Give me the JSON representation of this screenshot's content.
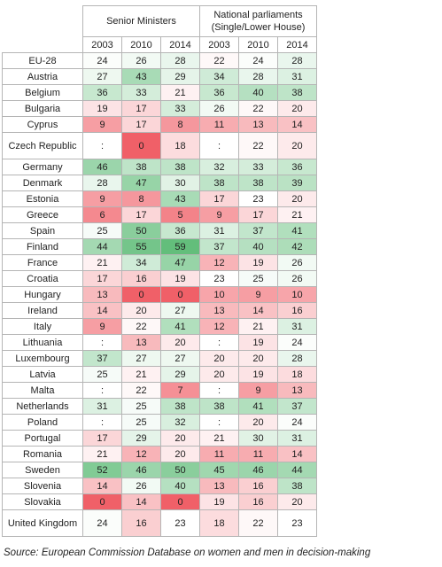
{
  "header": {
    "group1": "Senior Ministers",
    "group2_line1": "National parliaments",
    "group2_line2": "(Single/Lower House)",
    "years": [
      "2003",
      "2010",
      "2014",
      "2003",
      "2010",
      "2014"
    ]
  },
  "rows": [
    {
      "country": "EU-28",
      "values": [
        "24",
        "26",
        "28",
        "22",
        "24",
        "28"
      ]
    },
    {
      "country": "Austria",
      "values": [
        "27",
        "43",
        "29",
        "34",
        "28",
        "31"
      ]
    },
    {
      "country": "Belgium",
      "values": [
        "36",
        "33",
        "21",
        "36",
        "40",
        "38"
      ]
    },
    {
      "country": "Bulgaria",
      "values": [
        "19",
        "17",
        "33",
        "26",
        "22",
        "20"
      ]
    },
    {
      "country": "Cyprus",
      "values": [
        "9",
        "17",
        "8",
        "11",
        "13",
        "14"
      ]
    },
    {
      "country": "Czech Republic",
      "values": [
        ":",
        "0",
        "18",
        ":",
        "22",
        "20"
      ]
    },
    {
      "country": "Germany",
      "values": [
        "46",
        "38",
        "38",
        "32",
        "33",
        "36"
      ]
    },
    {
      "country": "Denmark",
      "values": [
        "28",
        "47",
        "30",
        "38",
        "38",
        "39"
      ]
    },
    {
      "country": "Estonia",
      "values": [
        "9",
        "8",
        "43",
        "17",
        "23",
        "20"
      ]
    },
    {
      "country": "Greece",
      "values": [
        "6",
        "17",
        "5",
        "9",
        "17",
        "21"
      ]
    },
    {
      "country": "Spain",
      "values": [
        "25",
        "50",
        "36",
        "31",
        "37",
        "41"
      ]
    },
    {
      "country": "Finland",
      "values": [
        "44",
        "55",
        "59",
        "37",
        "40",
        "42"
      ]
    },
    {
      "country": "France",
      "values": [
        "21",
        "34",
        "47",
        "12",
        "19",
        "26"
      ]
    },
    {
      "country": "Croatia",
      "values": [
        "17",
        "16",
        "19",
        "23",
        "25",
        "26"
      ]
    },
    {
      "country": "Hungary",
      "values": [
        "13",
        "0",
        "0",
        "10",
        "9",
        "10"
      ]
    },
    {
      "country": "Ireland",
      "values": [
        "14",
        "20",
        "27",
        "13",
        "14",
        "16"
      ]
    },
    {
      "country": "Italy",
      "values": [
        "9",
        "22",
        "41",
        "12",
        "21",
        "31"
      ]
    },
    {
      "country": "Lithuania",
      "values": [
        ":",
        "13",
        "20",
        ":",
        "19",
        "24"
      ]
    },
    {
      "country": "Luxembourg",
      "values": [
        "37",
        "27",
        "27",
        "20",
        "20",
        "28"
      ]
    },
    {
      "country": "Latvia",
      "values": [
        "25",
        "21",
        "29",
        "20",
        "19",
        "18"
      ]
    },
    {
      "country": "Malta",
      "values": [
        ":",
        "22",
        "7",
        ":",
        "9",
        "13"
      ]
    },
    {
      "country": "Netherlands",
      "values": [
        "31",
        "25",
        "38",
        "38",
        "41",
        "37"
      ]
    },
    {
      "country": "Poland",
      "values": [
        ":",
        "25",
        "32",
        ":",
        "20",
        "24"
      ]
    },
    {
      "country": "Portugal",
      "values": [
        "17",
        "29",
        "20",
        "21",
        "30",
        "31"
      ]
    },
    {
      "country": "Romania",
      "values": [
        "21",
        "12",
        "20",
        "11",
        "11",
        "14"
      ]
    },
    {
      "country": "Sweden",
      "values": [
        "52",
        "46",
        "50",
        "45",
        "46",
        "44"
      ]
    },
    {
      "country": "Slovenia",
      "values": [
        "14",
        "26",
        "40",
        "13",
        "16",
        "38"
      ]
    },
    {
      "country": "Slovakia",
      "values": [
        "0",
        "14",
        "0",
        "19",
        "16",
        "20"
      ]
    },
    {
      "country": "United Kingdom",
      "values": [
        "24",
        "16",
        "23",
        "18",
        "22",
        "23"
      ]
    }
  ],
  "source": "Source: European Commission Database on women and men in decision-making"
}
